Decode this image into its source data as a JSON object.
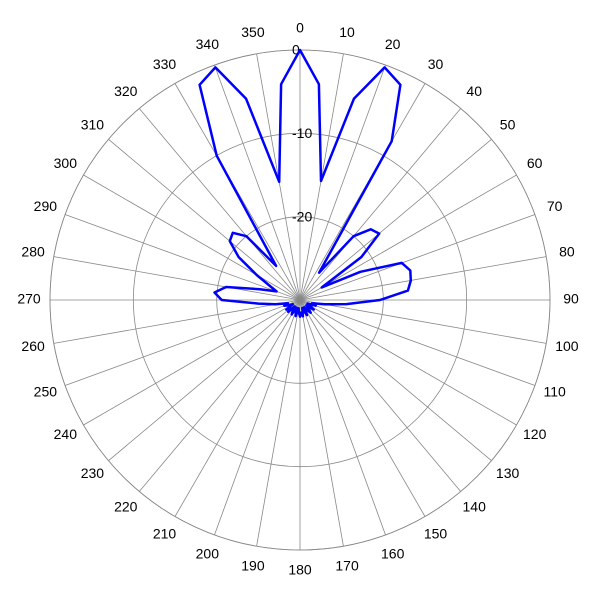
{
  "chart_data": {
    "type": "polar",
    "theta": [
      0,
      5,
      10,
      15,
      20,
      25,
      30,
      35,
      40,
      45,
      50,
      55,
      60,
      65,
      70,
      75,
      80,
      85,
      90,
      95,
      100,
      105,
      110,
      115,
      120,
      125,
      130,
      135,
      140,
      145,
      150,
      155,
      160,
      165,
      170,
      175,
      180,
      185,
      190,
      195,
      200,
      205,
      210,
      215,
      220,
      225,
      230,
      235,
      240,
      245,
      250,
      255,
      260,
      265,
      270,
      275,
      280,
      285,
      290,
      295,
      300,
      305,
      310,
      315,
      320,
      325,
      330,
      335,
      340,
      345,
      350,
      355
    ],
    "series": [
      {
        "color": "#0000ff",
        "values": [
          0,
          -4,
          -15.5,
          -5,
          -0.3,
          -1.5,
          -8,
          -26,
          -20,
          -18,
          -17.6,
          -21,
          -27,
          -22,
          -17,
          -16.3,
          -16.5,
          -17,
          -20.4,
          -24.4,
          -27,
          -28.5,
          -28,
          -29,
          -28.5,
          -28,
          -29,
          -28.5,
          -28,
          -28.5,
          -29,
          -28,
          -28.5,
          -29,
          -28,
          -28.5,
          -28,
          -28.5,
          -29,
          -28,
          -28.5,
          -29,
          -28,
          -28.5,
          -29,
          -28,
          -28.5,
          -28,
          -29,
          -28.5,
          -28,
          -28.5,
          -27,
          -25,
          -20.6,
          -19.7,
          -21,
          -25,
          -27,
          -26,
          -24,
          -21,
          -19,
          -18.6,
          -20,
          -25,
          -10,
          -1.5,
          -0.3,
          -5,
          -15.6,
          -4
        ]
      }
    ],
    "rlim": [
      -30,
      0
    ],
    "rticks": [
      0,
      -10,
      -20
    ],
    "thetaticks": [
      0,
      10,
      20,
      30,
      40,
      50,
      60,
      70,
      80,
      90,
      100,
      110,
      120,
      130,
      140,
      150,
      160,
      170,
      180,
      190,
      200,
      210,
      220,
      230,
      240,
      250,
      260,
      270,
      280,
      290,
      300,
      310,
      320,
      330,
      340,
      350
    ],
    "direction": "clockwise",
    "zero": "top",
    "grid": true
  }
}
